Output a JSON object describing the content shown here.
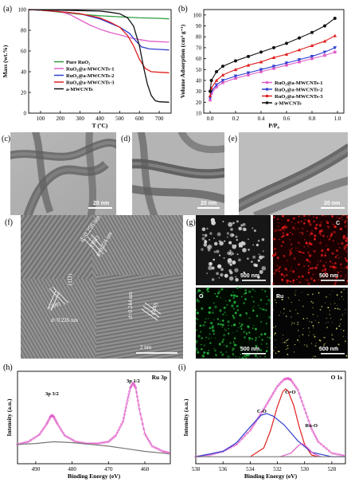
{
  "panels": {
    "a": "(a)",
    "b": "(b)",
    "c": "(c)",
    "d": "(d)",
    "e": "(e)",
    "f": "(f)",
    "g": "(g)",
    "h": "(h)",
    "i": "(i)"
  },
  "tga": {
    "chart_data": {
      "type": "line",
      "xlabel": "T (ºC)",
      "ylabel": "Mass (wt.%)",
      "xlim": [
        40,
        760
      ],
      "ylim": [
        0,
        100
      ],
      "xticks": [
        100,
        200,
        300,
        400,
        500,
        600,
        700
      ],
      "yticks": [
        0,
        20,
        40,
        60,
        80,
        100
      ],
      "legend": "bottom-left",
      "series": [
        {
          "name": "Pure RuO₂",
          "color": "#2e9e3e",
          "x": [
            40,
            100,
            200,
            300,
            400,
            500,
            600,
            700,
            750
          ],
          "y": [
            100,
            99.5,
            97.5,
            95.5,
            94,
            93,
            92,
            91.5,
            91
          ]
        },
        {
          "name": "RuO₂@a-MWCNTs-1",
          "color": "#e05fc8",
          "x": [
            40,
            100,
            200,
            250,
            300,
            350,
            400,
            450,
            500,
            550,
            600,
            650,
            700,
            750
          ],
          "y": [
            100,
            99.5,
            98,
            95,
            90,
            85,
            81,
            78,
            75.5,
            73,
            71,
            69.5,
            69,
            68.5
          ]
        },
        {
          "name": "RuO₂@a-MWCNTs-2",
          "color": "#2f3fd0",
          "x": [
            40,
            100,
            200,
            300,
            400,
            450,
            500,
            550,
            580,
            610,
            650,
            700,
            750
          ],
          "y": [
            100,
            99.5,
            98,
            96,
            91,
            87,
            83,
            77,
            70,
            64,
            62,
            61.5,
            61
          ]
        },
        {
          "name": "RuO₂@a-MWCNTs-3",
          "color": "#e02020",
          "x": [
            40,
            100,
            200,
            300,
            400,
            450,
            500,
            540,
            570,
            600,
            630,
            660,
            700,
            750
          ],
          "y": [
            100,
            99.5,
            98,
            96,
            92,
            88,
            83,
            75,
            65,
            52,
            43,
            40,
            39.5,
            39
          ]
        },
        {
          "name": "a-MWCNTs",
          "color": "#111111",
          "x": [
            40,
            100,
            200,
            300,
            400,
            450,
            500,
            540,
            570,
            600,
            620,
            640,
            660,
            680,
            700,
            750
          ],
          "y": [
            100,
            99.8,
            99.5,
            99,
            98.5,
            97.5,
            96,
            92,
            84,
            65,
            45,
            28,
            17,
            12,
            11,
            10.5
          ]
        }
      ]
    }
  },
  "bet": {
    "chart_data": {
      "type": "line",
      "xlabel": "P/P₀",
      "ylabel": "Volume Adsorption (cm³ g⁻¹)",
      "xlim": [
        -0.05,
        1.05
      ],
      "ylim": [
        10,
        105
      ],
      "xticks": [
        0.0,
        0.2,
        0.4,
        0.6,
        0.8,
        1.0
      ],
      "yticks": [
        10,
        20,
        30,
        40,
        50,
        60,
        70,
        80,
        90,
        100
      ],
      "legend": "bottom-right",
      "series": [
        {
          "name": "RuO₂@a-MWCNTs-1",
          "color": "#e05fc8",
          "x": [
            0.0,
            0.01,
            0.05,
            0.1,
            0.2,
            0.3,
            0.4,
            0.5,
            0.6,
            0.7,
            0.8,
            0.9,
            0.98
          ],
          "y": [
            22,
            28,
            34,
            38,
            42,
            45,
            48,
            51,
            54,
            57,
            60,
            63,
            66
          ]
        },
        {
          "name": "RuO₂@a-MWCNTs-2",
          "color": "#2f3fd0",
          "x": [
            0.0,
            0.01,
            0.05,
            0.1,
            0.2,
            0.3,
            0.4,
            0.5,
            0.6,
            0.7,
            0.8,
            0.9,
            0.98
          ],
          "y": [
            24,
            30,
            36,
            40,
            44,
            47,
            50,
            53,
            56,
            59,
            62,
            66,
            70
          ]
        },
        {
          "name": "RuO₂@a-MWCNTs-3",
          "color": "#e02020",
          "x": [
            0.0,
            0.01,
            0.05,
            0.1,
            0.2,
            0.3,
            0.4,
            0.5,
            0.6,
            0.7,
            0.8,
            0.9,
            0.98
          ],
          "y": [
            26,
            33,
            40,
            45,
            50,
            54,
            57,
            61,
            64,
            68,
            72,
            76,
            81
          ]
        },
        {
          "name": "a-MWCNTs",
          "color": "#111111",
          "x": [
            0.0,
            0.01,
            0.05,
            0.1,
            0.2,
            0.3,
            0.4,
            0.5,
            0.6,
            0.7,
            0.8,
            0.9,
            0.98
          ],
          "y": [
            30,
            40,
            48,
            53,
            58,
            62,
            66,
            70,
            74,
            79,
            84,
            90,
            97
          ]
        }
      ]
    }
  },
  "tem": {
    "c_scale": "20 nm",
    "d_scale": "20 nm",
    "e_scale": "20 nm"
  },
  "hrtem": {
    "labels": [
      "d=0.256 nm",
      "(101)",
      "d=0.224 nm",
      "(111)",
      "(200)",
      "d=0.226 nm",
      "d=0.244 nm",
      "(200)",
      "2 nm"
    ]
  },
  "eds": {
    "tiles": [
      {
        "label": "",
        "scale": "500 nm"
      },
      {
        "label": "C",
        "scale": "500 nm"
      },
      {
        "label": "O",
        "scale": "500 nm"
      },
      {
        "label": "Ru",
        "scale": "500 nm"
      }
    ]
  },
  "xps_ru": {
    "chart_data": {
      "type": "line",
      "title": "Ru 3p",
      "xlabel": "Binding Energy (eV)",
      "ylabel": "Intensity (a.u.)",
      "xlim": [
        495,
        453
      ],
      "xticks": [
        490,
        480,
        470,
        460
      ],
      "peaks": [
        {
          "label": "3p 3/2",
          "position": 485.5
        },
        {
          "label": "3p 1/2",
          "position": 463.2
        }
      ],
      "series": [
        {
          "name": "raw",
          "color": "#e05fc8",
          "x": [
            495,
            492,
            489,
            487,
            486,
            485.5,
            485,
            484,
            482,
            479,
            476,
            473,
            470,
            468,
            466,
            465,
            464,
            463.2,
            462.5,
            461.5,
            460,
            458,
            455,
            453
          ],
          "y": [
            0.22,
            0.25,
            0.33,
            0.45,
            0.53,
            0.55,
            0.53,
            0.45,
            0.32,
            0.25,
            0.23,
            0.23,
            0.25,
            0.32,
            0.48,
            0.68,
            0.86,
            0.92,
            0.86,
            0.62,
            0.34,
            0.2,
            0.14,
            0.12
          ]
        },
        {
          "name": "background",
          "color": "#777777",
          "x": [
            495,
            490,
            485,
            480,
            475,
            470,
            465,
            460,
            455,
            453
          ],
          "y": [
            0.22,
            0.23,
            0.25,
            0.24,
            0.22,
            0.2,
            0.17,
            0.14,
            0.12,
            0.11
          ]
        }
      ]
    }
  },
  "xps_o": {
    "chart_data": {
      "type": "line",
      "title": "O 1s",
      "xlabel": "Binding Energy (eV)",
      "ylabel": "Intensity (a.u.)",
      "xlim": [
        538,
        527
      ],
      "xticks": [
        538,
        536,
        534,
        532,
        530,
        528
      ],
      "peaks": [
        {
          "label": "C=O",
          "position": 531.4
        },
        {
          "label": "C-O",
          "position": 532.8
        },
        {
          "label": "Ru-O",
          "position": 530.2
        }
      ],
      "series": [
        {
          "name": "raw",
          "color": "#e05fc8",
          "x": [
            538,
            537,
            536,
            535,
            534,
            533.5,
            533,
            532.5,
            532,
            531.5,
            531.2,
            531,
            530.5,
            530,
            529.5,
            529,
            528,
            527
          ],
          "y": [
            0.08,
            0.1,
            0.14,
            0.22,
            0.38,
            0.5,
            0.62,
            0.75,
            0.88,
            0.96,
            0.97,
            0.95,
            0.84,
            0.62,
            0.4,
            0.25,
            0.12,
            0.09
          ]
        },
        {
          "name": "C=O",
          "color": "#e02020",
          "x": [
            534,
            533,
            532.5,
            532,
            531.6,
            531.4,
            531.2,
            530.8,
            530.4,
            530,
            529.5,
            529
          ],
          "y": [
            0.08,
            0.18,
            0.38,
            0.65,
            0.82,
            0.85,
            0.82,
            0.66,
            0.42,
            0.22,
            0.1,
            0.08
          ]
        },
        {
          "name": "C-O",
          "color": "#2f3fd0",
          "x": [
            538,
            536,
            535,
            534,
            533.2,
            532.8,
            532.3,
            531.5,
            530.5,
            529.5,
            528,
            527
          ],
          "y": [
            0.08,
            0.14,
            0.24,
            0.42,
            0.55,
            0.57,
            0.54,
            0.44,
            0.26,
            0.13,
            0.08,
            0.08
          ]
        },
        {
          "name": "Ru-O",
          "color": "#e05fc8",
          "x": [
            531.8,
            531,
            530.5,
            530.2,
            529.9,
            529.4,
            528.8
          ],
          "y": [
            0.08,
            0.12,
            0.2,
            0.23,
            0.2,
            0.12,
            0.08
          ]
        },
        {
          "name": "background",
          "color": "#777777",
          "x": [
            538,
            535,
            532,
            530,
            528,
            527
          ],
          "y": [
            0.08,
            0.08,
            0.08,
            0.08,
            0.08,
            0.08
          ]
        }
      ]
    }
  }
}
